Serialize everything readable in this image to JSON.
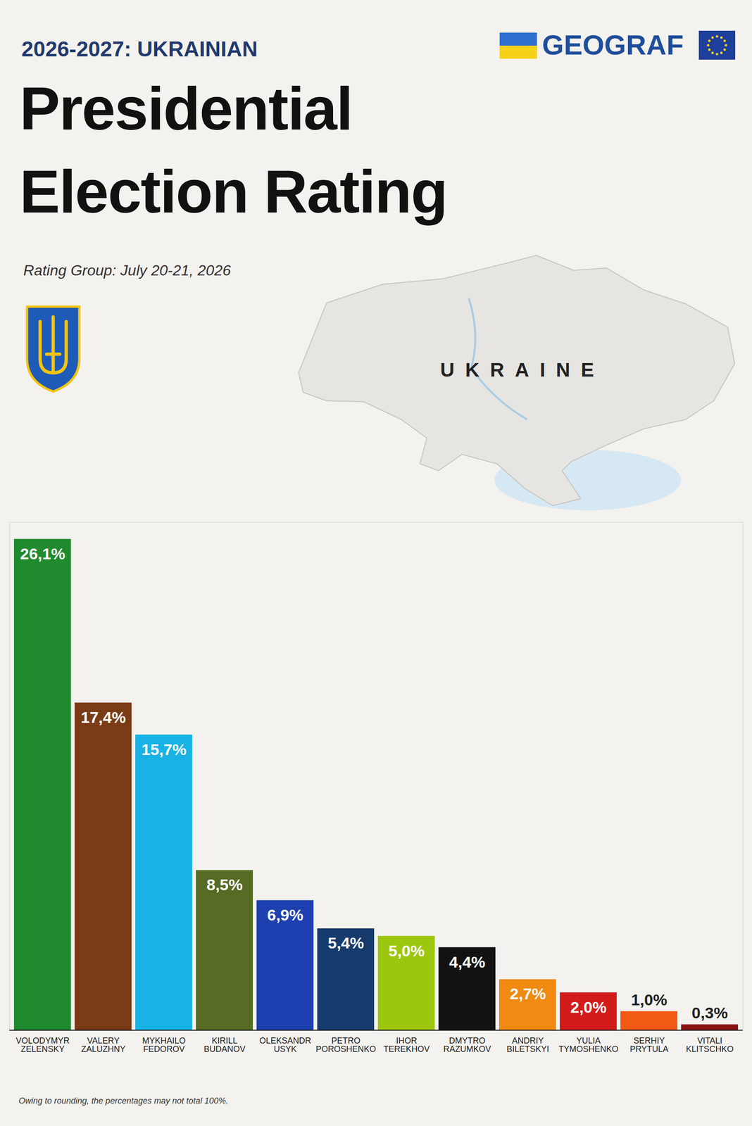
{
  "chart_data": {
    "type": "bar",
    "title": "Presidential Election Rating",
    "subtitle": "Rating Group: July 20-21, 2026",
    "annotations": {
      "kicker": "2026-2027: UKRAINIAN",
      "brand": "GEOGRAF",
      "map_label": "UKRAINE",
      "note": "Owing to rounding, the percentages may not total 100%."
    },
    "categories": [
      "VOLODYMYR ZELENSKY",
      "VALERY ZALUZHNY",
      "MYKHAILO FEDOROV",
      "KIRILL BUDANOV",
      "OLEKSANDR USYK",
      "PETRO POROSHENKO",
      "IHOR TEREKHOV",
      "DMYTRO RAZUMKOV",
      "ANDRIY BILETSKYI",
      "YULIA TYMOSHENKO",
      "SERHIY PRYTULA",
      "VITALI KLITSCHKO"
    ],
    "values": [
      26.1,
      17.4,
      15.7,
      8.5,
      6.9,
      5.4,
      5.0,
      4.4,
      2.7,
      2.0,
      1.0,
      0.3
    ],
    "value_labels": [
      "26,1%",
      "17,4%",
      "15,7%",
      "8,5%",
      "6,9%",
      "5,4%",
      "5,0%",
      "4,4%",
      "2,7%",
      "2,0%",
      "1,0%",
      "0,3%"
    ],
    "colors": [
      "#1f8a2e",
      "#7a3b17",
      "#18b2e4",
      "#566b24",
      "#1d3fb0",
      "#153a6b",
      "#9dc70f",
      "#121212",
      "#f08a12",
      "#d21c1c",
      "#f05a14",
      "#8b1414"
    ],
    "ylim": [
      0,
      27
    ],
    "data_labels": true,
    "tick_labels": "x"
  }
}
